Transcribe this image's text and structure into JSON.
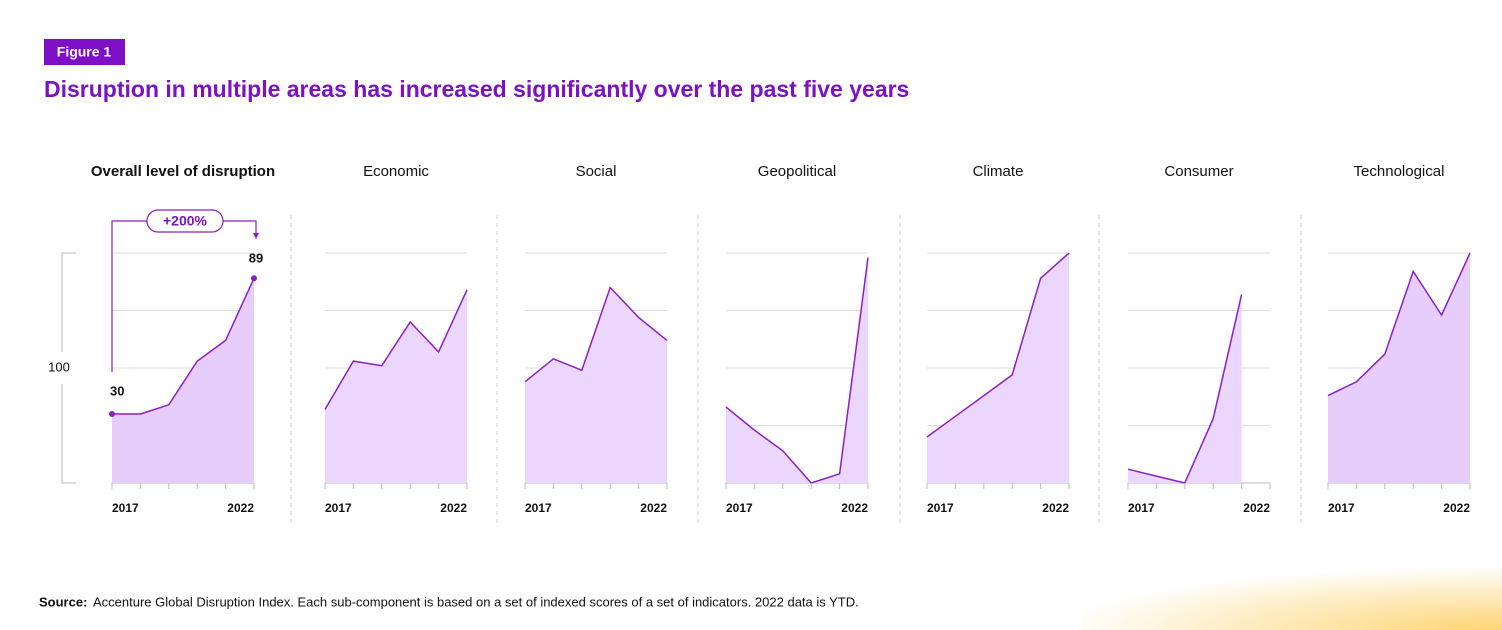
{
  "figure_label": "Figure 1",
  "title": "Disruption in multiple areas has increased significantly over the past five years",
  "chart_data": [
    {
      "type": "area",
      "title": "Overall level of disruption",
      "categories": [
        "2017",
        null,
        null,
        null,
        null,
        "2022"
      ],
      "values": [
        30,
        30,
        34,
        53,
        62,
        89
      ],
      "color": "#8a1fc8",
      "fill": "#e6cdfb",
      "ylim": [
        0,
        100
      ],
      "yticks": [
        0,
        25,
        50,
        75,
        100
      ],
      "grid": true,
      "annotation": "+200%",
      "scale_label": 100
    },
    {
      "type": "area",
      "title": "Economic",
      "categories": [
        "2017",
        null,
        null,
        null,
        null,
        "2022"
      ],
      "values": [
        32,
        53,
        51,
        70,
        57,
        84
      ],
      "color": "#8a1fc8",
      "fill": "#ebd7fd",
      "ylim": [
        0,
        100
      ],
      "yticks": [
        0,
        25,
        50,
        75,
        100
      ],
      "grid": true
    },
    {
      "type": "area",
      "title": "Social",
      "categories": [
        "2017",
        null,
        null,
        null,
        null,
        "2022"
      ],
      "values": [
        44,
        54,
        49,
        85,
        72,
        62
      ],
      "color": "#8a1fc8",
      "fill": "#ebd7fd",
      "ylim": [
        0,
        100
      ],
      "yticks": [
        0,
        25,
        50,
        75,
        100
      ],
      "grid": true
    },
    {
      "type": "area",
      "title": "Geopolitical",
      "categories": [
        "2017",
        null,
        null,
        null,
        null,
        "2022"
      ],
      "values": [
        33,
        23,
        14,
        0,
        4,
        98
      ],
      "color": "#8a1fc8",
      "fill": "#ebd7fd",
      "ylim": [
        0,
        100
      ],
      "yticks": [
        0,
        25,
        50,
        75,
        100
      ],
      "grid": true
    },
    {
      "type": "area",
      "title": "Climate",
      "categories": [
        "2017",
        null,
        null,
        null,
        null,
        "2022"
      ],
      "values": [
        20,
        29,
        38,
        47,
        89,
        100
      ],
      "color": "#8a1fc8",
      "fill": "#ebd7fd",
      "ylim": [
        0,
        100
      ],
      "yticks": [
        0,
        25,
        50,
        75,
        100
      ],
      "grid": true
    },
    {
      "type": "area",
      "title": "Consumer",
      "categories": [
        "2017",
        null,
        null,
        null,
        null,
        "2022"
      ],
      "values": [
        6,
        3,
        0,
        28,
        82,
        null
      ],
      "color": "#8a1fc8",
      "fill": "#ebd7fd",
      "ylim": [
        0,
        100
      ],
      "yticks": [
        0,
        25,
        50,
        75,
        100
      ],
      "grid": true
    },
    {
      "type": "area",
      "title": "Technological",
      "categories": [
        "2017",
        null,
        null,
        null,
        null,
        "2022"
      ],
      "values": [
        38,
        44,
        56,
        92,
        73,
        100
      ],
      "color": "#8a1fc8",
      "fill": "#e6cdfb",
      "ylim": [
        0,
        100
      ],
      "yticks": [
        0,
        25,
        50,
        75,
        100
      ],
      "grid": true
    }
  ],
  "source": {
    "label": "Source:",
    "text": "Accenture Global Disruption Index. Each sub-component is based on a set of indexed scores of a set of indicators. 2022 data is YTD."
  }
}
